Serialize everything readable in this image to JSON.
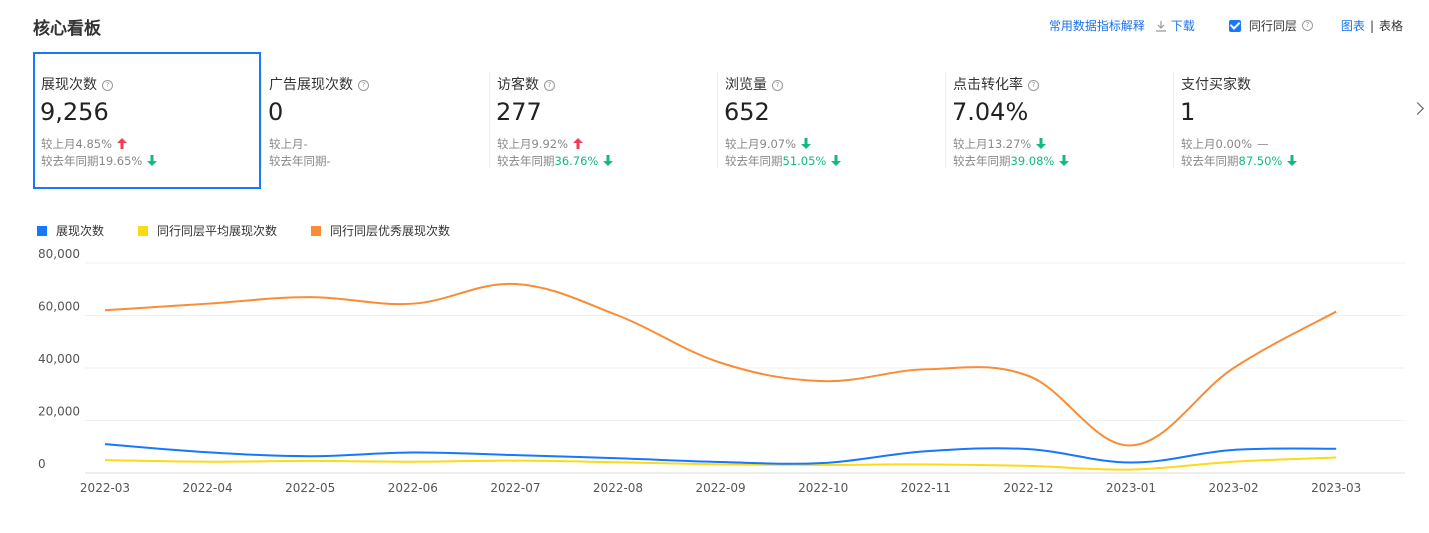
{
  "title": "核心看板",
  "toolbar": {
    "metrics_explain": "常用数据指标解释",
    "download": "下载",
    "peer_label": "同行同层",
    "view_chart": "图表",
    "view_table": "表格"
  },
  "metrics": [
    {
      "label": "展现次数",
      "value": "9,256",
      "mom_label": "较上月",
      "mom_value": "4.85%",
      "mom_dir": "up",
      "yoy_label": "较去年同期",
      "yoy_value": "19.65%",
      "yoy_dir": "down",
      "yoy_green": false
    },
    {
      "label": "广告展现次数",
      "value": "0",
      "mom_label": "较上月",
      "mom_value": "-",
      "mom_dir": "none",
      "yoy_label": "较去年同期",
      "yoy_value": "-",
      "yoy_dir": "none",
      "yoy_green": false
    },
    {
      "label": "访客数",
      "value": "277",
      "mom_label": "较上月",
      "mom_value": "9.92%",
      "mom_dir": "up",
      "yoy_label": "较去年同期",
      "yoy_value": "36.76%",
      "yoy_dir": "down",
      "yoy_green": true
    },
    {
      "label": "浏览量",
      "value": "652",
      "mom_label": "较上月",
      "mom_value": "9.07%",
      "mom_dir": "down",
      "yoy_label": "较去年同期",
      "yoy_value": "51.05%",
      "yoy_dir": "down",
      "yoy_green": true
    },
    {
      "label": "点击转化率",
      "value": "7.04%",
      "mom_label": "较上月",
      "mom_value": "13.27%",
      "mom_dir": "down",
      "yoy_label": "较去年同期",
      "yoy_value": "39.08%",
      "yoy_dir": "down",
      "yoy_green": true
    },
    {
      "label": "支付买家数",
      "value": "1",
      "mom_label": "较上月",
      "mom_value": "0.00%",
      "mom_dir": "flat",
      "yoy_label": "较去年同期",
      "yoy_value": "87.50%",
      "yoy_dir": "down",
      "yoy_green": true
    }
  ],
  "colors": {
    "blue": "#1677ff",
    "yellow": "#fadb14",
    "orange": "#fa8c35",
    "green": "#12b886",
    "red": "#f03e55"
  },
  "chart_data": {
    "type": "line",
    "title": "",
    "xlabel": "",
    "ylabel": "",
    "ylim": [
      0,
      80000
    ],
    "yticks": [
      "0",
      "20,000",
      "40,000",
      "60,000",
      "80,000"
    ],
    "categories": [
      "2022-03",
      "2022-04",
      "2022-05",
      "2022-06",
      "2022-07",
      "2022-08",
      "2022-09",
      "2022-10",
      "2022-11",
      "2022-12",
      "2023-01",
      "2023-02",
      "2023-03"
    ],
    "series": [
      {
        "name": "展现次数",
        "color": "#1677ff",
        "values": [
          11000,
          7900,
          6400,
          7800,
          6800,
          5600,
          4200,
          3800,
          8300,
          9100,
          4000,
          8800,
          9256
        ]
      },
      {
        "name": "同行同层平均展现次数",
        "color": "#fadb14",
        "values": [
          4900,
          4300,
          4600,
          4300,
          4700,
          4100,
          3300,
          3100,
          3300,
          2700,
          1300,
          4300,
          5900
        ]
      },
      {
        "name": "同行同层优秀展现次数",
        "color": "#fa8c35",
        "values": [
          62000,
          64500,
          67000,
          64500,
          72000,
          60000,
          42000,
          35000,
          39500,
          37000,
          10500,
          40000,
          61500
        ]
      }
    ],
    "legend_position": "top-left",
    "grid": true
  }
}
